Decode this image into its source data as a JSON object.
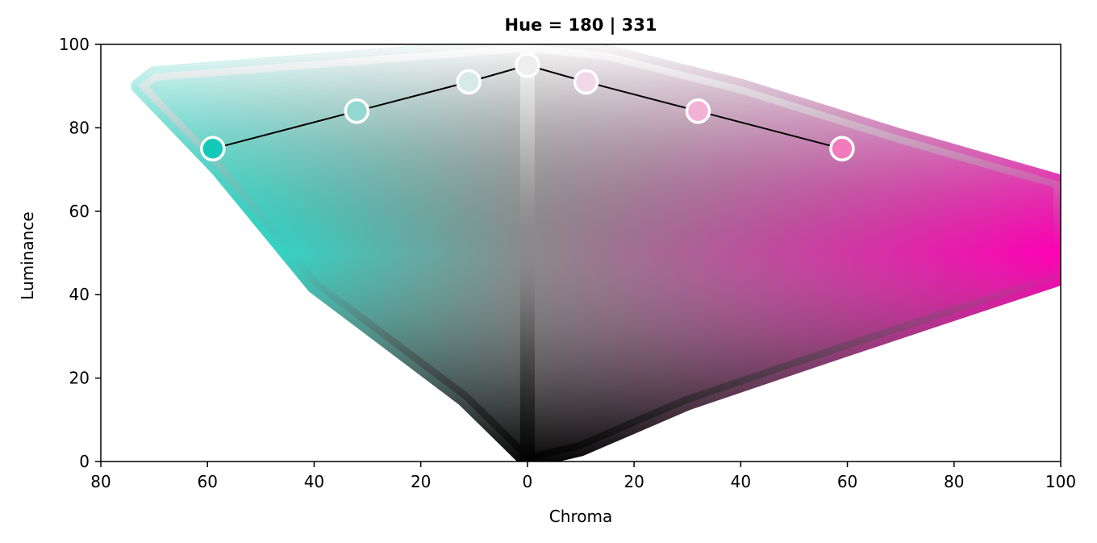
{
  "chart_data": {
    "type": "scatter",
    "title": "Hue = 180 | 331",
    "xlabel": "Chroma",
    "ylabel": "Luminance",
    "xlim": [
      -80,
      100
    ],
    "ylim": [
      0,
      100
    ],
    "x_ticks": [
      -80,
      -60,
      -40,
      -20,
      0,
      20,
      40,
      60,
      80,
      100
    ],
    "x_tick_labels": [
      "80",
      "60",
      "40",
      "20",
      "0",
      "20",
      "40",
      "60",
      "80",
      "100"
    ],
    "y_ticks": [
      0,
      20,
      40,
      60,
      80,
      100
    ],
    "y_tick_labels": [
      "0",
      "20",
      "40",
      "60",
      "80",
      "100"
    ],
    "grid": false,
    "left_hue": 180,
    "right_hue": 331,
    "left_color": "#00ffe6",
    "right_color": "#ff00b4",
    "gamut_left": [
      [
        0,
        0
      ],
      [
        -12,
        15
      ],
      [
        -40,
        42
      ],
      [
        -58,
        70
      ],
      [
        -73,
        90
      ],
      [
        -70,
        93
      ],
      [
        -40,
        96
      ],
      [
        -20,
        98
      ],
      [
        0,
        100
      ]
    ],
    "gamut_right": [
      [
        0,
        100
      ],
      [
        15,
        98
      ],
      [
        40,
        90
      ],
      [
        70,
        78
      ],
      [
        100,
        67
      ],
      [
        100,
        44
      ],
      [
        60,
        27
      ],
      [
        30,
        14
      ],
      [
        10,
        3
      ],
      [
        0,
        0
      ]
    ],
    "palette": {
      "x": [
        -59,
        -32,
        -11,
        0,
        11,
        32,
        59
      ],
      "y": [
        75,
        84,
        91,
        95,
        91,
        84,
        75
      ],
      "colors": [
        "#14c9b8",
        "#92d8d1",
        "#d6ebe8",
        "#eeeeee",
        "#f2d8e6",
        "#f2b2d5",
        "#f07bbd"
      ]
    }
  }
}
